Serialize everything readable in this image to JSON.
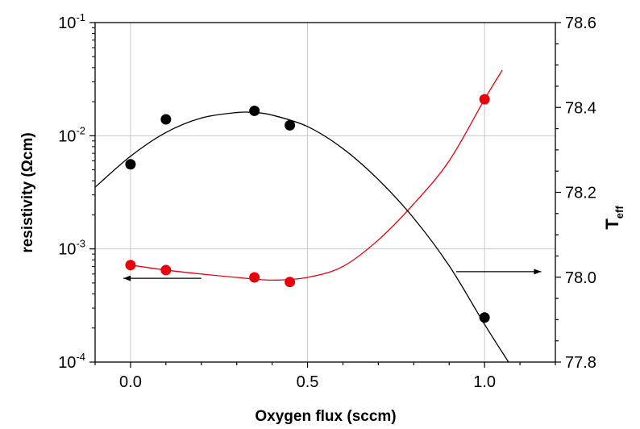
{
  "chart_data": {
    "type": "scatter",
    "xlabel": "Oxygen flux (sccm)",
    "ylabel_left": "resistivity (Ωcm)",
    "ylabel_right": {
      "base": "T",
      "sub": "eff"
    },
    "x_range": [
      -0.1,
      1.2
    ],
    "x_ticks": [
      0.0,
      0.5,
      1.0
    ],
    "x_tick_labels": [
      "0.0",
      "0.5",
      "1.0"
    ],
    "y_left": {
      "scale": "log",
      "range": [
        0.0001,
        0.1
      ],
      "ticks": [
        0.0001,
        0.001,
        0.01,
        0.1
      ],
      "tick_labels": [
        {
          "base": "10",
          "exp": "-4"
        },
        {
          "base": "10",
          "exp": "-3"
        },
        {
          "base": "10",
          "exp": "-2"
        },
        {
          "base": "10",
          "exp": "-1"
        }
      ]
    },
    "y_right": {
      "scale": "linear",
      "range": [
        77.8,
        78.6
      ],
      "ticks": [
        77.8,
        78.0,
        78.2,
        78.4,
        78.6
      ],
      "tick_labels": [
        "77.8",
        "78.0",
        "78.2",
        "78.4",
        "78.6"
      ]
    },
    "grid": true,
    "series": [
      {
        "axis": "left",
        "color": "#e8000b",
        "marker": "circle",
        "points": [
          [
            0.0,
            0.00072
          ],
          [
            0.1,
            0.00065
          ],
          [
            0.35,
            0.00056
          ],
          [
            0.45,
            0.00051
          ],
          [
            1.0,
            0.021
          ]
        ],
        "fit": [
          [
            0.0,
            0.00072
          ],
          [
            0.1,
            0.00065
          ],
          [
            0.2,
            0.0006
          ],
          [
            0.3,
            0.00056
          ],
          [
            0.4,
            0.00053
          ],
          [
            0.5,
            0.00056
          ],
          [
            0.6,
            0.0007
          ],
          [
            0.7,
            0.0012
          ],
          [
            0.8,
            0.0025
          ],
          [
            0.9,
            0.006
          ],
          [
            1.0,
            0.021
          ],
          [
            1.05,
            0.038
          ]
        ]
      },
      {
        "axis": "right",
        "color": "#000000",
        "marker": "circle",
        "points": [
          [
            0.0,
            78.266
          ],
          [
            0.1,
            78.372
          ],
          [
            0.35,
            78.392
          ],
          [
            0.45,
            78.358
          ],
          [
            1.0,
            77.905
          ]
        ],
        "fit": [
          [
            -0.1,
            78.212
          ],
          [
            0.0,
            78.285
          ],
          [
            0.1,
            78.341
          ],
          [
            0.2,
            78.375
          ],
          [
            0.3,
            78.388
          ],
          [
            0.35,
            78.388
          ],
          [
            0.4,
            78.382
          ],
          [
            0.5,
            78.355
          ],
          [
            0.6,
            78.303
          ],
          [
            0.7,
            78.23
          ],
          [
            0.8,
            78.139
          ],
          [
            0.9,
            78.027
          ],
          [
            1.0,
            77.889
          ],
          [
            1.07,
            77.797
          ]
        ]
      }
    ],
    "annotations": [
      {
        "type": "arrow",
        "direction": "left",
        "points_to_axis": "left",
        "x_from": 0.2,
        "x_to": -0.02,
        "y_left": 0.00055
      },
      {
        "type": "arrow",
        "direction": "right",
        "points_to_axis": "right",
        "x_from": 0.92,
        "x_to": 1.16,
        "y_right": 78.013
      }
    ]
  }
}
